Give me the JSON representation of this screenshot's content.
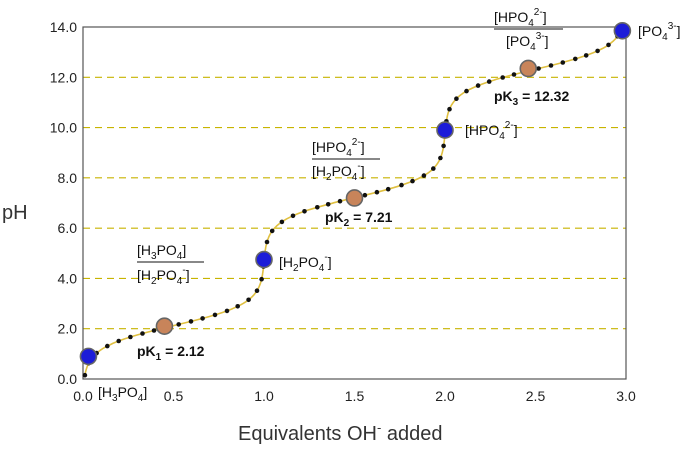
{
  "chart_data": {
    "type": "line",
    "title": "",
    "xlabel": "Equivalents OH",
    "xlabel_sup": "-",
    "xlabel_tail": " added",
    "ylabel": "pH",
    "xlim": [
      0,
      3
    ],
    "ylim": [
      0,
      14
    ],
    "x_ticks": [
      "0.0",
      "0.5",
      "1.0",
      "1.5",
      "2.0",
      "2.5",
      "3.0"
    ],
    "y_ticks": [
      "0.0",
      "2.0",
      "4.0",
      "6.0",
      "8.0",
      "10.0",
      "12.0",
      "14.0"
    ],
    "grid": "dashed horizontal",
    "colors": {
      "line": "#e0c040",
      "grid": "#c8b400",
      "data_point": "#111111",
      "equivalence_fill": "#1c1cd8",
      "pk_fill": "#c8845a"
    },
    "curve_pka": [
      2.12,
      7.21,
      12.32
    ],
    "series": [
      {
        "name": "",
        "x": [
          0.03,
          1.0,
          2.0,
          2.98
        ],
        "y": [
          0.9,
          4.75,
          9.9,
          13.85
        ]
      },
      {
        "name": "",
        "x": [
          0.45,
          1.5,
          2.46
        ],
        "y": [
          2.1,
          7.2,
          12.35
        ]
      }
    ],
    "annotations": {
      "h3po4_bottom": {
        "base": "[H",
        "s1": "3",
        "mid": "PO",
        "s2": "4",
        "end": "]"
      },
      "eq1": {
        "base": "[H",
        "s1": "2",
        "mid": "PO",
        "s2": "4",
        "sup": "-",
        "end": "]"
      },
      "eq2": {
        "base": "[HPO",
        "s1": "4",
        "sup": "2-",
        "end": "]"
      },
      "eq3": {
        "base": "[PO",
        "s1": "4",
        "sup": "3-",
        "end": "]"
      },
      "frac1_num": {
        "base": "[H",
        "s1": "3",
        "mid": "PO",
        "s2": "4",
        "end": "]"
      },
      "frac1_den": {
        "base": "[H",
        "s1": "2",
        "mid": "PO",
        "s2": "4",
        "sup": "-",
        "end": "]"
      },
      "frac2_num": {
        "base": "[HPO",
        "s1": "4",
        "sup": "2-",
        "end": "]"
      },
      "frac2_den": {
        "base": "[H",
        "s1": "2",
        "mid": "PO",
        "s2": "4",
        "sup": "-",
        "end": "]"
      },
      "frac3_num": {
        "base": "[HPO",
        "s1": "4",
        "sup": "2-",
        "end": "]"
      },
      "frac3_den": {
        "base": "[PO",
        "s1": "4",
        "sup": "3-",
        "end": "]"
      },
      "pk1": {
        "label": "pK",
        "sub": "1",
        "value": " = 2.12"
      },
      "pk2": {
        "label": "pK",
        "sub": "2",
        "value": " = 7.21"
      },
      "pk3": {
        "label": "pK",
        "sub": "3",
        "value": " = 12.32"
      }
    }
  }
}
